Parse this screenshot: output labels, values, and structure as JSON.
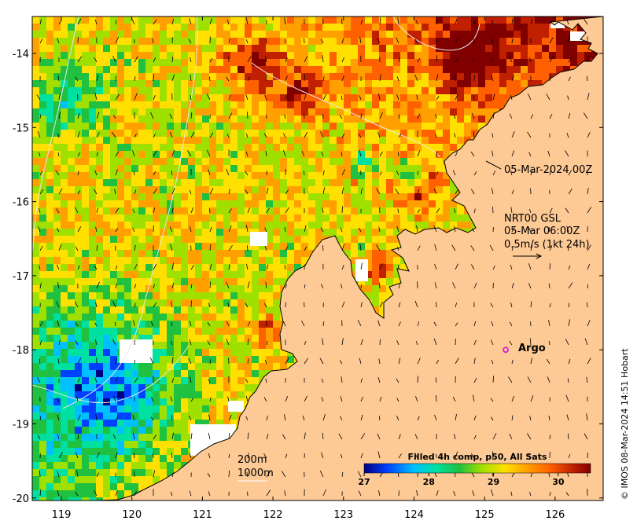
{
  "map": {
    "lat_ticks": [
      "-14",
      "-15",
      "-16",
      "-17",
      "-18",
      "-19",
      "-20"
    ],
    "lon_ticks": [
      "119",
      "120",
      "121",
      "122",
      "123",
      "124",
      "125",
      "126"
    ],
    "lat_range": [
      -20.1,
      -13.5
    ],
    "lon_range": [
      118.6,
      126.7
    ],
    "land_color": "#fdc995",
    "missing_color": "#ffffff"
  },
  "annotations": {
    "date_label": "05-Mar-2024 00Z",
    "current_line1": "NRT00 GSL",
    "current_line2": "05-Mar 06:00Z",
    "current_line3": "0.5m/s (1kt 24h)",
    "isobath_200": "200m",
    "isobath_1000": "1000m",
    "argo_label": "Argo",
    "argo_lon": 125.3,
    "argo_lat": -18.0,
    "argo_color": "#e000e0",
    "credit": "© IMOS 08-Mar-2024 14:51 Hobart"
  },
  "colorbar": {
    "title": "Filled 4h comp, p50, All Sats",
    "ticks": [
      "27",
      "28",
      "29",
      "30"
    ],
    "tick_values": [
      27,
      28,
      29,
      30
    ],
    "range": [
      27,
      30.5
    ],
    "colors": [
      "#00007f",
      "#0040ff",
      "#00c0ff",
      "#00e0a0",
      "#20c040",
      "#a0e000",
      "#ffe000",
      "#ffa000",
      "#ff6000",
      "#c02000",
      "#800000"
    ]
  }
}
